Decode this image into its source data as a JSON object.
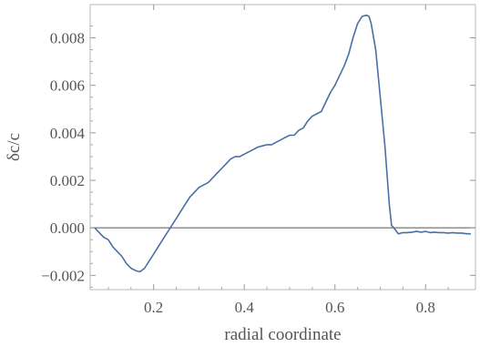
{
  "chart_data": {
    "type": "line",
    "title": "",
    "xlabel": "radial coordinate",
    "ylabel": "δc/c",
    "xlim": [
      0.06,
      0.91
    ],
    "ylim": [
      -0.0026,
      0.0094
    ],
    "x_ticks": [
      {
        "value": 0.2,
        "label": "0.2"
      },
      {
        "value": 0.4,
        "label": "0.4"
      },
      {
        "value": 0.6,
        "label": "0.6"
      },
      {
        "value": 0.8,
        "label": "0.8"
      }
    ],
    "y_ticks": [
      {
        "value": -0.002,
        "label": "−0.002"
      },
      {
        "value": 0.0,
        "label": "0.000"
      },
      {
        "value": 0.002,
        "label": "0.002"
      },
      {
        "value": 0.004,
        "label": "0.004"
      },
      {
        "value": 0.006,
        "label": "0.006"
      },
      {
        "value": 0.008,
        "label": "0.008"
      }
    ],
    "zero_line": true,
    "grid": false,
    "line_color": "#4a6fa5",
    "series": [
      {
        "x": [
          0.07,
          0.08,
          0.09,
          0.1,
          0.11,
          0.12,
          0.13,
          0.14,
          0.15,
          0.16,
          0.17,
          0.18,
          0.19,
          0.2,
          0.21,
          0.22,
          0.23,
          0.24,
          0.25,
          0.26,
          0.27,
          0.28,
          0.29,
          0.3,
          0.31,
          0.32,
          0.33,
          0.34,
          0.35,
          0.36,
          0.37,
          0.38,
          0.39,
          0.4,
          0.41,
          0.42,
          0.43,
          0.44,
          0.45,
          0.46,
          0.47,
          0.48,
          0.49,
          0.5,
          0.51,
          0.52,
          0.53,
          0.54,
          0.55,
          0.56,
          0.57,
          0.58,
          0.59,
          0.6,
          0.61,
          0.62,
          0.63,
          0.64,
          0.65,
          0.66,
          0.67,
          0.675,
          0.68,
          0.69,
          0.7,
          0.71,
          0.72,
          0.725,
          0.73,
          0.74,
          0.75,
          0.76,
          0.77,
          0.78,
          0.79,
          0.8,
          0.81,
          0.82,
          0.83,
          0.84,
          0.85,
          0.86,
          0.87,
          0.88,
          0.89,
          0.9
        ],
        "y": [
          0.0,
          -0.0002,
          -0.0004,
          -0.0005,
          -0.0008,
          -0.001,
          -0.0012,
          -0.0015,
          -0.0017,
          -0.0018,
          -0.00185,
          -0.0017,
          -0.0014,
          -0.0011,
          -0.0008,
          -0.0005,
          -0.0002,
          0.0001,
          0.0004,
          0.0007,
          0.001,
          0.0013,
          0.0015,
          0.0017,
          0.0018,
          0.0019,
          0.0021,
          0.0023,
          0.0025,
          0.0027,
          0.0029,
          0.003,
          0.003,
          0.0031,
          0.0032,
          0.0033,
          0.0034,
          0.00345,
          0.0035,
          0.0035,
          0.0036,
          0.0037,
          0.0038,
          0.0039,
          0.0039,
          0.0041,
          0.0042,
          0.0045,
          0.0047,
          0.0048,
          0.0049,
          0.0053,
          0.0057,
          0.006,
          0.0064,
          0.0068,
          0.0073,
          0.008,
          0.0086,
          0.0089,
          0.00895,
          0.0089,
          0.0086,
          0.0075,
          0.0055,
          0.0035,
          0.001,
          0.0001,
          0.0,
          -0.00025,
          -0.0002,
          -0.0002,
          -0.00018,
          -0.00015,
          -0.00018,
          -0.00015,
          -0.0002,
          -0.00018,
          -0.0002,
          -0.0002,
          -0.00022,
          -0.0002,
          -0.00022,
          -0.00022,
          -0.00025,
          -0.00025
        ]
      }
    ]
  }
}
